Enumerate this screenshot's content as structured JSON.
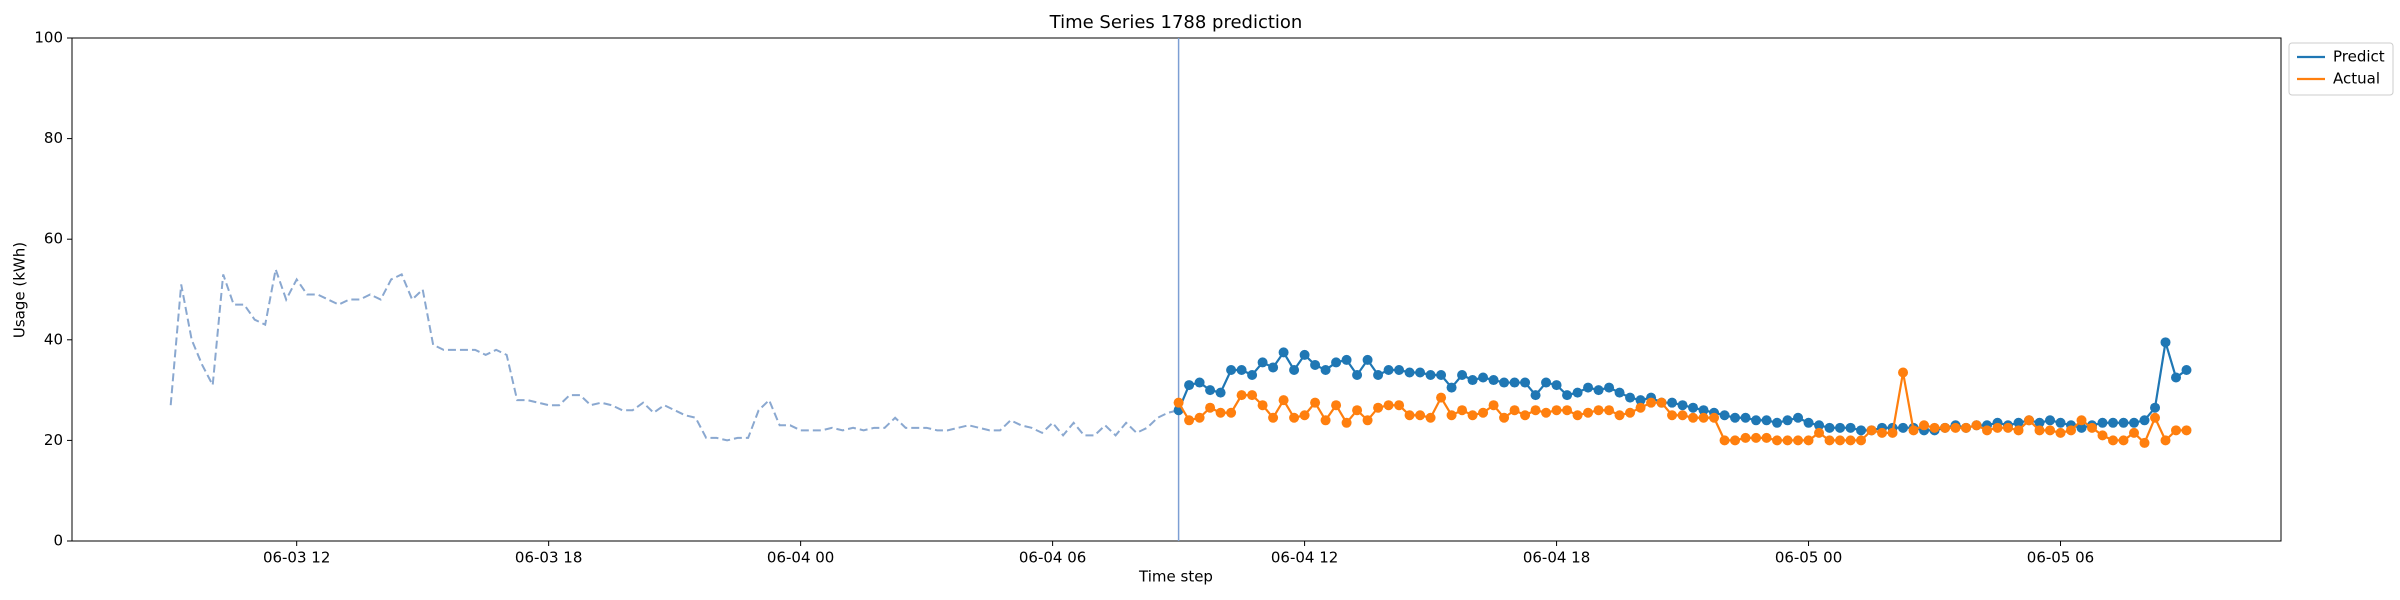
{
  "chart_data": {
    "type": "line",
    "title": "Time Series 1788 prediction",
    "xlabel": "Time step",
    "ylabel": "Usage (kWh)",
    "xlim": [
      6.65,
      59.25
    ],
    "xticks": [
      {
        "value": 12,
        "label": "06-03 12"
      },
      {
        "value": 18,
        "label": "06-03 18"
      },
      {
        "value": 24,
        "label": "06-04 00"
      },
      {
        "value": 30,
        "label": "06-04 06"
      },
      {
        "value": 36,
        "label": "06-04 12"
      },
      {
        "value": 42,
        "label": "06-04 18"
      },
      {
        "value": 48,
        "label": "06-05 00"
      },
      {
        "value": 54,
        "label": "06-05 06"
      }
    ],
    "ylim": [
      0,
      100
    ],
    "yticks": [
      0,
      20,
      40,
      60,
      80,
      100
    ],
    "grid": false,
    "legend": "upper right outside",
    "vline": {
      "x": 33,
      "color": "#7d9fd4"
    },
    "history": {
      "color": "#8aa8d0",
      "dashed": true,
      "x": [
        9,
        9.25,
        9.5,
        9.75,
        10,
        10.25,
        10.5,
        10.75,
        11,
        11.25,
        11.5,
        11.75,
        12,
        12.25,
        12.5,
        12.75,
        13,
        13.25,
        13.5,
        13.75,
        14,
        14.25,
        14.5,
        14.75,
        15,
        15.25,
        15.5,
        15.75,
        16,
        16.25,
        16.5,
        16.75,
        17,
        17.25,
        17.5,
        17.75,
        18,
        18.25,
        18.5,
        18.75,
        19,
        19.25,
        19.5,
        19.75,
        20,
        20.25,
        20.5,
        20.75,
        21,
        21.25,
        21.5,
        21.75,
        22,
        22.25,
        22.5,
        22.75,
        23,
        23.25,
        23.5,
        23.75,
        24,
        24.25,
        24.5,
        24.75,
        25,
        25.25,
        25.5,
        25.75,
        26,
        26.25,
        26.5,
        26.75,
        27,
        27.25,
        27.5,
        27.75,
        28,
        28.25,
        28.5,
        28.75,
        29,
        29.25,
        29.5,
        29.75,
        30,
        30.25,
        30.5,
        30.75,
        31,
        31.25,
        31.5,
        31.75,
        32,
        32.25,
        32.5,
        32.75,
        33
      ],
      "values": [
        27,
        51,
        40,
        35,
        31,
        53,
        47,
        47,
        44,
        43,
        54,
        48,
        52,
        49,
        49,
        48,
        47,
        48,
        48,
        49,
        48,
        52,
        53,
        48,
        50,
        39,
        38,
        38,
        38,
        38,
        37,
        38,
        37,
        28,
        28,
        27.5,
        27,
        27,
        29,
        29,
        27,
        27.5,
        27,
        26,
        26,
        27.5,
        25.5,
        27,
        26,
        25,
        24.5,
        20.5,
        20.5,
        20,
        20.5,
        20.5,
        26,
        28,
        23,
        23,
        22,
        22,
        22,
        22.5,
        22,
        22.5,
        22,
        22.5,
        22.5,
        24.5,
        22.5,
        22.5,
        22.5,
        22,
        22,
        22.5,
        23,
        22.5,
        22,
        22,
        24,
        23,
        22.5,
        21.5,
        23.5,
        21,
        23.5,
        21,
        21,
        23,
        21,
        23.5,
        21.5,
        22.5,
        24.5,
        25.5,
        26
      ]
    },
    "x": [
      33,
      33.25,
      33.5,
      33.75,
      34,
      34.25,
      34.5,
      34.75,
      35,
      35.25,
      35.5,
      35.75,
      36,
      36.25,
      36.5,
      36.75,
      37,
      37.25,
      37.5,
      37.75,
      38,
      38.25,
      38.5,
      38.75,
      39,
      39.25,
      39.5,
      39.75,
      40,
      40.25,
      40.5,
      40.75,
      41,
      41.25,
      41.5,
      41.75,
      42,
      42.25,
      42.5,
      42.75,
      43,
      43.25,
      43.5,
      43.75,
      44,
      44.25,
      44.5,
      44.75,
      45,
      45.25,
      45.5,
      45.75,
      46,
      46.25,
      46.5,
      46.75,
      47,
      47.25,
      47.5,
      47.75,
      48,
      48.25,
      48.5,
      48.75,
      49,
      49.25,
      49.5,
      49.75,
      50,
      50.25,
      50.5,
      50.75,
      51,
      51.25,
      51.5,
      51.75,
      52,
      52.25,
      52.5,
      52.75,
      53,
      53.25,
      53.5,
      53.75,
      54,
      54.25,
      54.5,
      54.75,
      55,
      55.25,
      55.5,
      55.75,
      56,
      56.25,
      56.5,
      56.75,
      57
    ],
    "series": [
      {
        "name": "Predict",
        "color": "#1f77b4",
        "values": [
          26,
          31,
          31.5,
          30,
          29.5,
          34,
          34,
          33,
          35.5,
          34.5,
          37.5,
          34,
          37,
          35,
          34,
          35.5,
          36,
          33,
          36,
          33,
          34,
          34,
          33.5,
          33.5,
          33,
          33,
          30.5,
          33,
          32,
          32.5,
          32,
          31.5,
          31.5,
          31.5,
          29,
          31.5,
          31,
          29,
          29.5,
          30.5,
          30,
          30.5,
          29.5,
          28.5,
          28,
          28.5,
          27.5,
          27.5,
          27,
          26.5,
          26,
          25.5,
          25,
          24.5,
          24.5,
          24,
          24,
          23.5,
          24,
          24.5,
          23.5,
          23,
          22.5,
          22.5,
          22.5,
          22,
          22,
          22.5,
          22.5,
          22.5,
          22.5,
          22,
          22,
          22.5,
          23,
          22.5,
          23,
          23,
          23.5,
          23,
          23.5,
          24,
          23.5,
          24,
          23.5,
          23,
          22.5,
          23,
          23.5,
          23.5,
          23.5,
          23.5,
          24,
          26.5,
          39.5,
          32.5,
          34
        ]
      },
      {
        "name": "Actual",
        "color": "#ff7f0e",
        "values": [
          27.5,
          24,
          24.5,
          26.5,
          25.5,
          25.5,
          29,
          29,
          27,
          24.5,
          28,
          24.5,
          25,
          27.5,
          24,
          27,
          23.5,
          26,
          24,
          26.5,
          27,
          27,
          25,
          25,
          24.5,
          28.5,
          25,
          26,
          25,
          25.5,
          27,
          24.5,
          26,
          25,
          26,
          25.5,
          26,
          26,
          25,
          25.5,
          26,
          26,
          25,
          25.5,
          26.5,
          27.5,
          27.5,
          25,
          25,
          24.5,
          24.5,
          24.5,
          20,
          20,
          20.5,
          20.5,
          20.5,
          20,
          20,
          20,
          20,
          21.5,
          20,
          20,
          20,
          20,
          22,
          21.5,
          21.5,
          33.5,
          22,
          23,
          22.5,
          22.5,
          22.5,
          22.5,
          23,
          22,
          22.5,
          22.5,
          22,
          24,
          22,
          22,
          21.5,
          22,
          24,
          22.5,
          21,
          20,
          20,
          21.5,
          19.5,
          24.5,
          20,
          22,
          22
        ]
      }
    ]
  }
}
